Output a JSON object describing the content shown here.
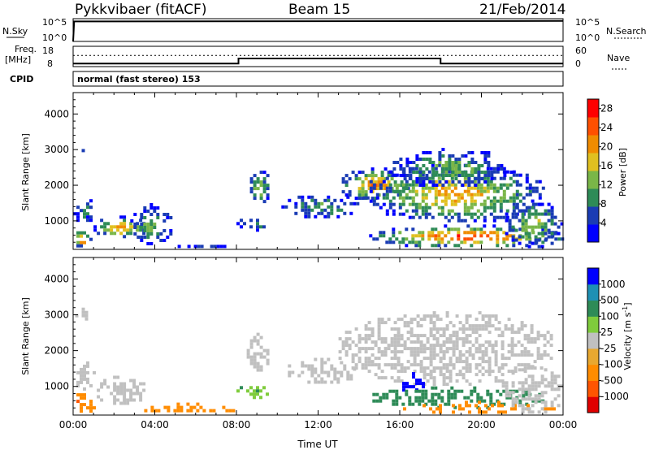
{
  "header": {
    "station": "Pykkvibaer (fitACF)",
    "beam": "Beam 15",
    "date": "21/Feb/2014"
  },
  "nsky_panel": {
    "left_label": "N.Sky",
    "left_ticks": [
      "10^5",
      "10^0"
    ],
    "right_label": "N.Search",
    "right_ticks": [
      "10^5",
      "10^0"
    ]
  },
  "freq_panel": {
    "left_label_1": "Freq.",
    "left_label_2": "[MHz]",
    "left_ticks": [
      "18",
      "8"
    ],
    "right_label": "Nave",
    "right_ticks": [
      "60",
      "0"
    ]
  },
  "cpid": {
    "label": "CPID",
    "value": "normal (fast stereo) 153"
  },
  "colors": {
    "power_scale": [
      "#0000ff",
      "#1a3cb4",
      "#2e8b57",
      "#7ab648",
      "#e0c020",
      "#f08c00",
      "#ff5000",
      "#ff0000"
    ],
    "velocity_scale": [
      "#e00000",
      "#ff5500",
      "#ff8c00",
      "#e8a830",
      "#c8c8c8",
      "#7fcc3c",
      "#2e8b57",
      "#1e90b4",
      "#0000ff"
    ],
    "ground_scatter": "#c0c0c0"
  },
  "chart_data": [
    {
      "type": "line",
      "title": "",
      "xlabel": "",
      "ylabel": "N.Sky",
      "ylim_log10": [
        0,
        5
      ],
      "series": [
        {
          "name": "N.Sky",
          "x_hours": [
            0,
            0.05,
            24
          ],
          "values_log10": [
            0,
            4.4,
            4.5
          ]
        },
        {
          "name": "N.Search",
          "x_hours": [
            0,
            24
          ],
          "values_log10": [
            0,
            0
          ]
        }
      ]
    },
    {
      "type": "line",
      "title": "",
      "xlabel": "",
      "ylabel": "Freq. [MHz]",
      "ylim": [
        8,
        18
      ],
      "series": [
        {
          "name": "Freq.",
          "x_hours": [
            0,
            8.1,
            8.1,
            18.0,
            18.0,
            24
          ],
          "values": [
            9.5,
            9.5,
            12.0,
            12.0,
            9.5,
            9.5
          ]
        },
        {
          "name": "Nave",
          "x_hours": [
            0,
            24
          ],
          "values": [
            33,
            33
          ]
        }
      ],
      "y2label": "Nave",
      "y2lim": [
        0,
        60
      ]
    },
    {
      "type": "heatmap",
      "title": "",
      "xlabel": "",
      "ylabel": "Slant Range [km]",
      "xlim_hours": [
        0,
        24
      ],
      "ylim": [
        200,
        4600
      ],
      "x_tick_labels": [
        "00:00",
        "04:00",
        "08:00",
        "12:00",
        "16:00",
        "20:00",
        "00:00"
      ],
      "y_ticks": [
        1000,
        2000,
        3000,
        4000
      ],
      "colorbar_label": "Power [dB]",
      "colorbar_ticks": [
        4,
        8,
        12,
        16,
        20,
        24,
        28
      ],
      "colorbar_range": [
        0,
        30
      ],
      "regions": [
        {
          "t0": 0.0,
          "t1": 0.8,
          "r0": 280,
          "r1": 800,
          "peak": 28
        },
        {
          "t0": 0.0,
          "t1": 1.0,
          "r0": 900,
          "r1": 1700,
          "peak": 10
        },
        {
          "t0": 1.0,
          "t1": 3.5,
          "r0": 550,
          "r1": 1150,
          "peak": 24
        },
        {
          "t0": 2.8,
          "t1": 4.8,
          "r0": 320,
          "r1": 1500,
          "peak": 14
        },
        {
          "t0": 4.8,
          "t1": 7.8,
          "r0": 280,
          "r1": 420,
          "peak": 8
        },
        {
          "t0": 8.0,
          "t1": 9.5,
          "r0": 750,
          "r1": 1150,
          "peak": 12
        },
        {
          "t0": 8.5,
          "t1": 9.6,
          "r0": 1500,
          "r1": 2500,
          "peak": 16
        },
        {
          "t0": 10.2,
          "t1": 14.0,
          "r0": 1100,
          "r1": 1800,
          "peak": 12
        },
        {
          "t0": 13.0,
          "t1": 16.5,
          "r0": 1600,
          "r1": 2500,
          "peak": 24
        },
        {
          "t0": 14.2,
          "t1": 23.0,
          "r0": 1000,
          "r1": 2600,
          "peak": 22
        },
        {
          "t0": 15.5,
          "t1": 21.5,
          "r0": 2000,
          "r1": 3050,
          "peak": 14
        },
        {
          "t0": 14.5,
          "t1": 24.0,
          "r0": 300,
          "r1": 900,
          "peak": 30
        },
        {
          "t0": 21.0,
          "t1": 24.0,
          "r0": 300,
          "r1": 1600,
          "peak": 16
        },
        {
          "t0": 0.1,
          "t1": 0.8,
          "r0": 2900,
          "r1": 3200,
          "peak": 6
        }
      ]
    },
    {
      "type": "heatmap",
      "title": "",
      "xlabel": "Time UT",
      "ylabel": "Slant Range [km]",
      "xlim_hours": [
        0,
        24
      ],
      "ylim": [
        200,
        4600
      ],
      "x_tick_labels": [
        "00:00",
        "04:00",
        "08:00",
        "12:00",
        "16:00",
        "20:00",
        "00:00"
      ],
      "y_ticks": [
        1000,
        2000,
        3000,
        4000
      ],
      "colorbar_label": "Velocity [m s^-1]",
      "colorbar_ticks": [
        "1000",
        "500",
        "100",
        "25",
        "-25",
        "-100",
        "-500",
        "-1000"
      ],
      "regions": [
        {
          "t0": 0.0,
          "t1": 1.0,
          "r0": 280,
          "r1": 900,
          "vel": -400
        },
        {
          "t0": 0.0,
          "t1": 1.0,
          "r0": 900,
          "r1": 1700,
          "vel": 0
        },
        {
          "t0": 1.0,
          "t1": 3.5,
          "r0": 550,
          "r1": 1300,
          "vel": 0
        },
        {
          "t0": 3.0,
          "t1": 7.8,
          "r0": 280,
          "r1": 550,
          "vel": -150
        },
        {
          "t0": 8.0,
          "t1": 9.5,
          "r0": 700,
          "r1": 1100,
          "vel": 80
        },
        {
          "t0": 8.5,
          "t1": 9.6,
          "r0": 1500,
          "r1": 2500,
          "vel": 0
        },
        {
          "t0": 10.2,
          "t1": 14.0,
          "r0": 1100,
          "r1": 1800,
          "vel": 0
        },
        {
          "t0": 13.0,
          "t1": 23.5,
          "r0": 1100,
          "r1": 3100,
          "vel": 0
        },
        {
          "t0": 15.8,
          "t1": 17.2,
          "r0": 900,
          "r1": 1400,
          "vel": 900
        },
        {
          "t0": 14.5,
          "t1": 23.0,
          "r0": 450,
          "r1": 1000,
          "vel": 200
        },
        {
          "t0": 16.0,
          "t1": 23.5,
          "r0": 300,
          "r1": 600,
          "vel": -200
        },
        {
          "t0": 21.0,
          "t1": 24.0,
          "r0": 300,
          "r1": 1600,
          "vel": 0
        },
        {
          "t0": 0.1,
          "t1": 0.8,
          "r0": 2900,
          "r1": 3200,
          "vel": 0
        }
      ]
    }
  ]
}
